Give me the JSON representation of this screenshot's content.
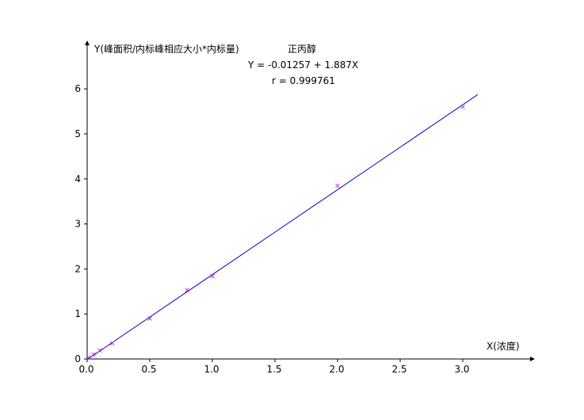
{
  "chart_data": {
    "type": "scatter",
    "ylabel": "Y(峰面积/内标峰相应大小*内标量)",
    "title": "正丙醇",
    "xlabel": "X(浓度)",
    "equation": "Y = -0.01257 + 1.887X",
    "r_text": "r = 0.999761",
    "fit": {
      "intercept": -0.01257,
      "slope": 1.887,
      "x_start": 0,
      "x_end": 3.12
    },
    "xlim": [
      0,
      3.5
    ],
    "ylim": [
      0,
      6.9
    ],
    "x_ticks": [
      0,
      0.5,
      1.0,
      1.5,
      2.0,
      2.5,
      3.0
    ],
    "x_tick_labels": [
      "0.0",
      "0.5",
      "1.0",
      "1.5",
      "2.0",
      "2.5",
      "3.0"
    ],
    "y_ticks": [
      0,
      1,
      2,
      3,
      4,
      5,
      6
    ],
    "y_tick_labels": [
      "0",
      "1",
      "2",
      "3",
      "4",
      "5",
      "6"
    ],
    "grid": false,
    "series": [
      {
        "x": [
          0.01,
          0.05,
          0.1,
          0.2,
          0.5,
          0.8,
          1.0,
          2.0,
          3.0
        ],
        "y": [
          0.03,
          0.1,
          0.19,
          0.35,
          0.9,
          1.53,
          1.84,
          3.85,
          5.6
        ]
      }
    ],
    "colors": {
      "line": "#0000cc",
      "markers": "#cc33cc",
      "axes": "#000000"
    }
  }
}
